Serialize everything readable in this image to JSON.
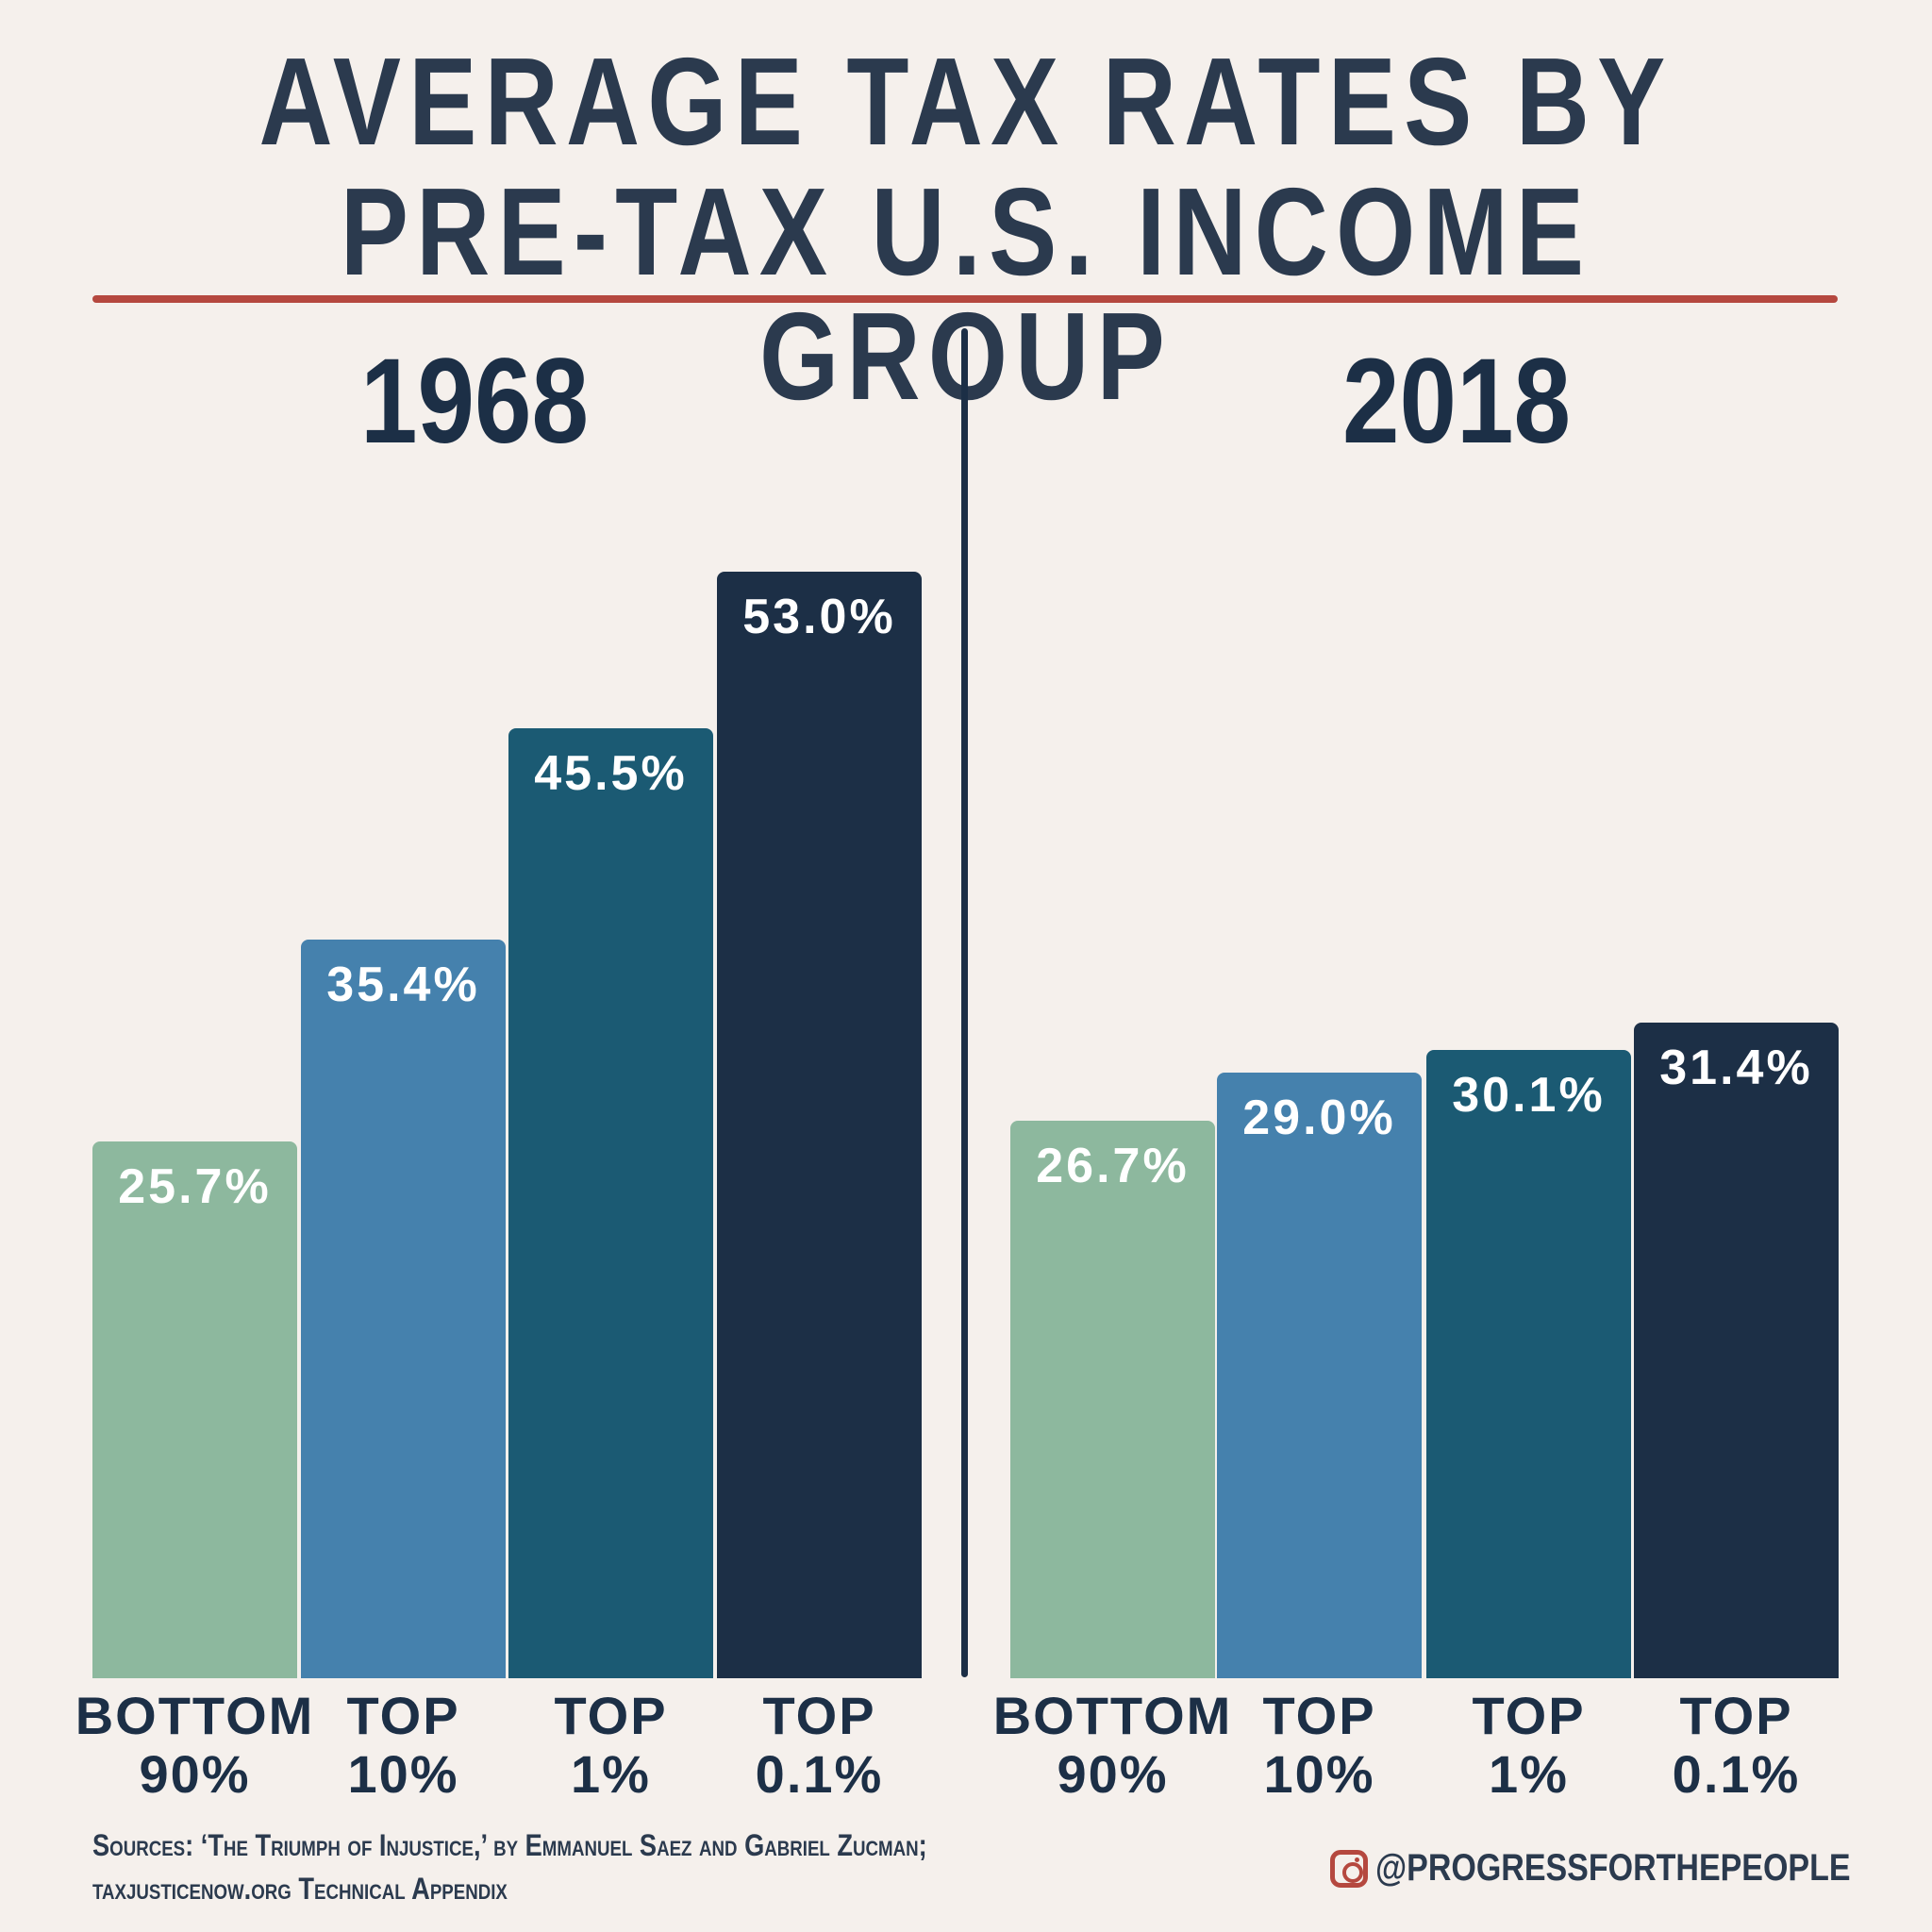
{
  "title_line1": "AVERAGE TAX RATES BY",
  "title_line2": "PRE-TAX U.S. INCOME GROUP",
  "colors": {
    "bottom_90": "#8db89e",
    "top_10": "#4581ad",
    "top_1": "#1b5a73",
    "top_0_1": "#1c2f46",
    "accent": "#b5483f",
    "background": "#f5f0ec"
  },
  "chart_data": [
    {
      "type": "bar",
      "title": "1968",
      "categories": [
        [
          "BOTTOM",
          "90%"
        ],
        [
          "TOP",
          "10%"
        ],
        [
          "TOP",
          "1%"
        ],
        [
          "TOP",
          "0.1%"
        ]
      ],
      "values": [
        25.7,
        35.4,
        45.5,
        53.0
      ],
      "labels": [
        "25.7%",
        "35.4%",
        "45.5%",
        "53.0%"
      ]
    },
    {
      "type": "bar",
      "title": "2018",
      "categories": [
        [
          "BOTTOM",
          "90%"
        ],
        [
          "TOP",
          "10%"
        ],
        [
          "TOP",
          "1%"
        ],
        [
          "TOP",
          "0.1%"
        ]
      ],
      "values": [
        26.7,
        29.0,
        30.1,
        31.4
      ],
      "labels": [
        "26.7%",
        "29.0%",
        "30.1%",
        "31.4%"
      ]
    }
  ],
  "footer": {
    "source_line1": "Sources: ‘The Triumph of Injustice,’ by Emmanuel Saez and Gabriel Zucman;",
    "source_line2": "taxjusticenow.org Technical Appendix",
    "handle": "@PROGRESSFORTHEPEOPLE",
    "handle_icon": "instagram-icon"
  }
}
